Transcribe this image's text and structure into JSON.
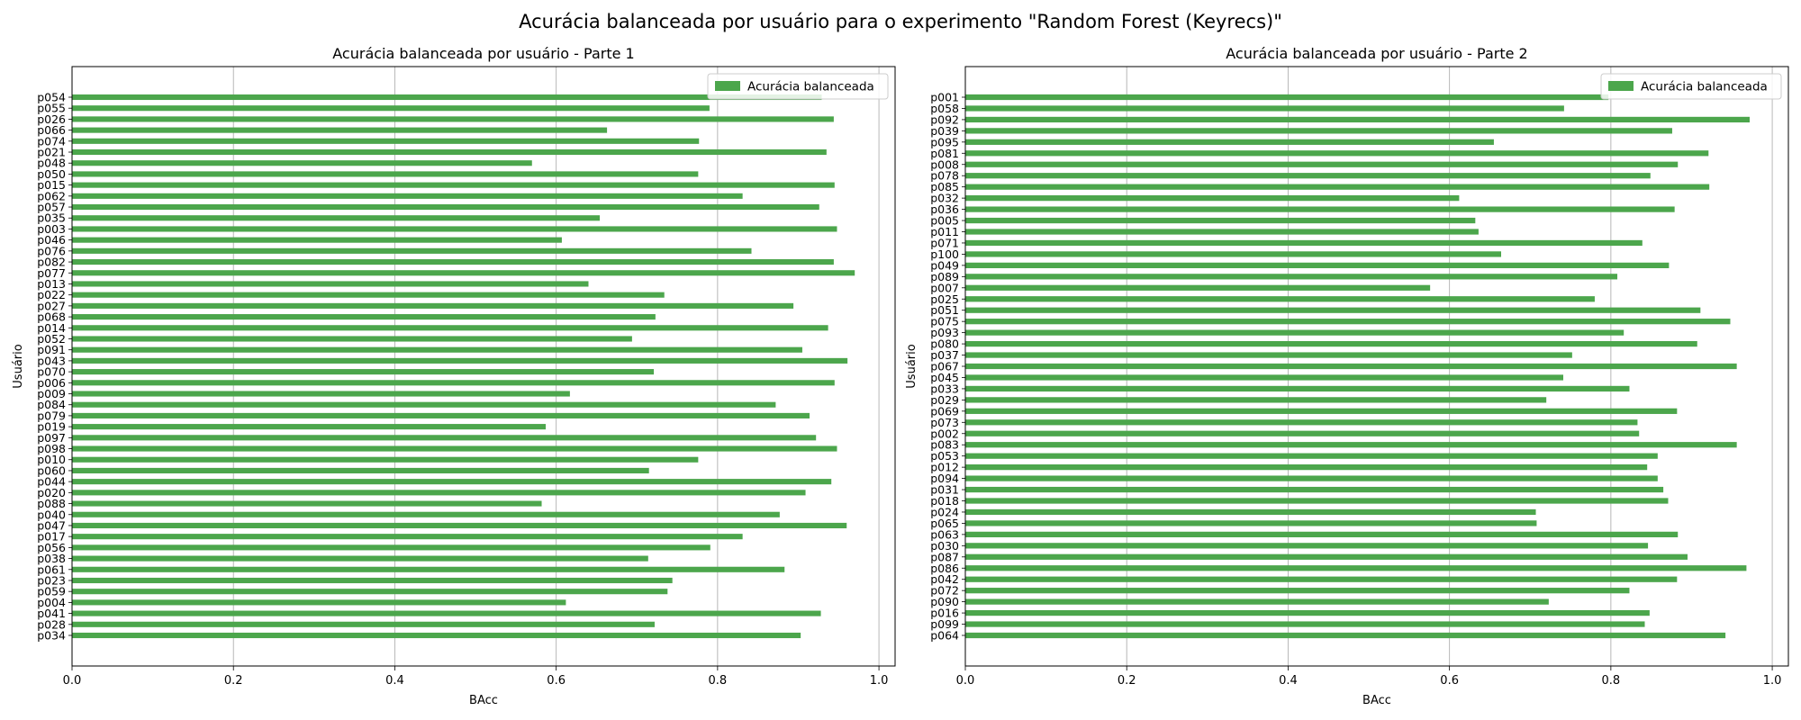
{
  "figure": {
    "title": "Acurácia balanceada por usuário para o experimento \"Random Forest (Keyrecs)\""
  },
  "chart_data": [
    {
      "type": "bar",
      "orientation": "horizontal",
      "title": "Acurácia balanceada por usuário - Parte 1",
      "xlabel": "BAcc",
      "ylabel": "Usuário",
      "xlim": [
        0,
        1.02
      ],
      "xticks": [
        "0.0",
        "0.2",
        "0.4",
        "0.6",
        "0.8",
        "1.0"
      ],
      "grid": "x",
      "legend": "top-right",
      "color": "#4ca64c",
      "series": [
        {
          "name": "Acurácia balanceada"
        }
      ],
      "categories": [
        "p054",
        "p055",
        "p026",
        "p066",
        "p074",
        "p021",
        "p048",
        "p050",
        "p015",
        "p062",
        "p057",
        "p035",
        "p003",
        "p046",
        "p076",
        "p082",
        "p077",
        "p013",
        "p022",
        "p027",
        "p068",
        "p014",
        "p052",
        "p091",
        "p043",
        "p070",
        "p006",
        "p009",
        "p084",
        "p079",
        "p019",
        "p097",
        "p098",
        "p010",
        "p060",
        "p044",
        "p020",
        "p088",
        "p040",
        "p047",
        "p017",
        "p056",
        "p038",
        "p061",
        "p023",
        "p059",
        "p004",
        "p041",
        "p028",
        "p034"
      ],
      "values": [
        0.929,
        0.79,
        0.944,
        0.663,
        0.777,
        0.935,
        0.57,
        0.776,
        0.945,
        0.831,
        0.926,
        0.654,
        0.948,
        0.607,
        0.842,
        0.944,
        0.97,
        0.64,
        0.734,
        0.894,
        0.723,
        0.937,
        0.694,
        0.905,
        0.961,
        0.721,
        0.945,
        0.617,
        0.872,
        0.914,
        0.587,
        0.922,
        0.948,
        0.776,
        0.715,
        0.941,
        0.909,
        0.582,
        0.877,
        0.96,
        0.831,
        0.791,
        0.714,
        0.883,
        0.744,
        0.738,
        0.612,
        0.928,
        0.722,
        0.903
      ]
    },
    {
      "type": "bar",
      "orientation": "horizontal",
      "title": "Acurácia balanceada por usuário - Parte 2",
      "xlabel": "BAcc",
      "ylabel": "Usuário",
      "xlim": [
        0,
        1.02
      ],
      "xticks": [
        "0.0",
        "0.2",
        "0.4",
        "0.6",
        "0.8",
        "1.0"
      ],
      "grid": "x",
      "legend": "top-right",
      "color": "#4ca64c",
      "series": [
        {
          "name": "Acurácia balanceada"
        }
      ],
      "categories": [
        "p001",
        "p058",
        "p092",
        "p039",
        "p095",
        "p081",
        "p008",
        "p078",
        "p085",
        "p032",
        "p036",
        "p005",
        "p011",
        "p071",
        "p100",
        "p049",
        "p089",
        "p007",
        "p025",
        "p051",
        "p075",
        "p093",
        "p080",
        "p037",
        "p067",
        "p045",
        "p033",
        "p029",
        "p069",
        "p073",
        "p002",
        "p083",
        "p053",
        "p012",
        "p094",
        "p031",
        "p018",
        "p024",
        "p065",
        "p063",
        "p030",
        "p087",
        "p086",
        "p042",
        "p072",
        "p090",
        "p016",
        "p099",
        "p064"
      ],
      "values": [
        0.797,
        0.742,
        0.972,
        0.876,
        0.655,
        0.921,
        0.883,
        0.849,
        0.922,
        0.612,
        0.879,
        0.632,
        0.636,
        0.839,
        0.664,
        0.872,
        0.808,
        0.576,
        0.78,
        0.911,
        0.948,
        0.816,
        0.907,
        0.752,
        0.956,
        0.741,
        0.823,
        0.72,
        0.882,
        0.833,
        0.835,
        0.956,
        0.858,
        0.845,
        0.858,
        0.865,
        0.871,
        0.707,
        0.708,
        0.883,
        0.846,
        0.895,
        0.968,
        0.882,
        0.823,
        0.723,
        0.848,
        0.842,
        0.942
      ]
    }
  ]
}
